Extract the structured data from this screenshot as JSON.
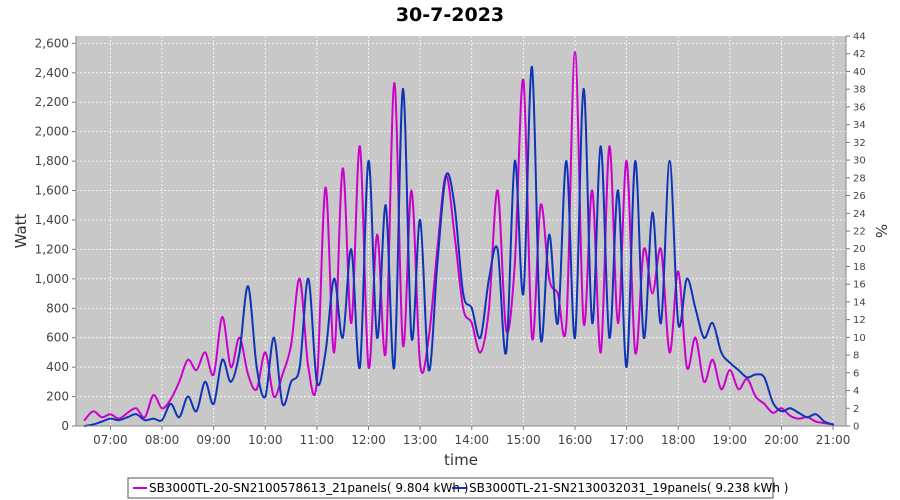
{
  "chart_data": {
    "type": "line",
    "title": "30-7-2023",
    "xlabel": "time",
    "ylabel": "Watt",
    "y2label": "%",
    "xlim": [
      "06:20",
      "21:15"
    ],
    "ylim": [
      0,
      2650
    ],
    "y2lim": [
      0,
      44
    ],
    "grid": true,
    "legend_position": "bottom",
    "x_ticks": [
      "07:00",
      "08:00",
      "09:00",
      "10:00",
      "11:00",
      "12:00",
      "13:00",
      "14:00",
      "15:00",
      "16:00",
      "17:00",
      "18:00",
      "19:00",
      "20:00",
      "21:00"
    ],
    "y_ticks": [
      "0",
      "200",
      "400",
      "600",
      "800",
      "1,000",
      "1,200",
      "1,400",
      "1,600",
      "1,800",
      "2,000",
      "2,200",
      "2,400",
      "2,600"
    ],
    "y2_ticks": [
      "0",
      "2",
      "4",
      "6",
      "8",
      "10",
      "12",
      "14",
      "16",
      "18",
      "20",
      "22",
      "24",
      "26",
      "28",
      "30",
      "32",
      "34",
      "36",
      "38",
      "40",
      "42",
      "44"
    ],
    "series": [
      {
        "name": "SB3000TL-20-SN2100578613_21panels( 9.804 kWh )",
        "color": "#cc00cc",
        "x": [
          "06:30",
          "06:40",
          "06:50",
          "07:00",
          "07:10",
          "07:20",
          "07:30",
          "07:40",
          "07:50",
          "08:00",
          "08:10",
          "08:20",
          "08:30",
          "08:40",
          "08:50",
          "09:00",
          "09:10",
          "09:20",
          "09:30",
          "09:40",
          "09:50",
          "10:00",
          "10:10",
          "10:20",
          "10:30",
          "10:40",
          "10:50",
          "11:00",
          "11:10",
          "11:20",
          "11:30",
          "11:40",
          "11:50",
          "12:00",
          "12:10",
          "12:20",
          "12:30",
          "12:40",
          "12:50",
          "13:00",
          "13:10",
          "13:20",
          "13:30",
          "13:40",
          "13:50",
          "14:00",
          "14:10",
          "14:20",
          "14:30",
          "14:40",
          "14:50",
          "15:00",
          "15:10",
          "15:20",
          "15:30",
          "15:40",
          "15:50",
          "16:00",
          "16:10",
          "16:20",
          "16:30",
          "16:40",
          "16:50",
          "17:00",
          "17:10",
          "17:20",
          "17:30",
          "17:40",
          "17:50",
          "18:00",
          "18:10",
          "18:20",
          "18:30",
          "18:40",
          "18:50",
          "19:00",
          "19:10",
          "19:20",
          "19:30",
          "19:40",
          "19:50",
          "20:00",
          "20:10",
          "20:20",
          "20:30",
          "20:40",
          "20:50",
          "21:00"
        ],
        "values": [
          40,
          100,
          60,
          80,
          50,
          90,
          120,
          60,
          210,
          120,
          180,
          300,
          450,
          380,
          500,
          350,
          740,
          400,
          600,
          350,
          250,
          500,
          200,
          350,
          550,
          1000,
          400,
          300,
          1620,
          500,
          1750,
          700,
          1900,
          400,
          1300,
          500,
          2330,
          550,
          1600,
          420,
          600,
          1200,
          1700,
          1300,
          800,
          700,
          500,
          800,
          1600,
          650,
          1100,
          2350,
          600,
          1500,
          1000,
          900,
          700,
          2540,
          700,
          1600,
          500,
          1900,
          700,
          1800,
          500,
          1200,
          900,
          1200,
          500,
          1050,
          400,
          600,
          300,
          450,
          250,
          380,
          250,
          320,
          200,
          150,
          90,
          120,
          70,
          50,
          60,
          30,
          20,
          10
        ]
      },
      {
        "name": "SB3000TL-21-SN2130032031_19panels( 9.238 kWh )",
        "color": "#1034b8",
        "x": [
          "06:30",
          "06:40",
          "06:50",
          "07:00",
          "07:10",
          "07:20",
          "07:30",
          "07:40",
          "07:50",
          "08:00",
          "08:10",
          "08:20",
          "08:30",
          "08:40",
          "08:50",
          "09:00",
          "09:10",
          "09:20",
          "09:30",
          "09:40",
          "09:50",
          "10:00",
          "10:10",
          "10:20",
          "10:30",
          "10:40",
          "10:50",
          "11:00",
          "11:10",
          "11:20",
          "11:30",
          "11:40",
          "11:50",
          "12:00",
          "12:10",
          "12:20",
          "12:30",
          "12:40",
          "12:50",
          "13:00",
          "13:10",
          "13:20",
          "13:30",
          "13:40",
          "13:50",
          "14:00",
          "14:10",
          "14:20",
          "14:30",
          "14:40",
          "14:50",
          "15:00",
          "15:10",
          "15:20",
          "15:30",
          "15:40",
          "15:50",
          "16:00",
          "16:10",
          "16:20",
          "16:30",
          "16:40",
          "16:50",
          "17:00",
          "17:10",
          "17:20",
          "17:30",
          "17:40",
          "17:50",
          "18:00",
          "18:10",
          "18:20",
          "18:30",
          "18:40",
          "18:50",
          "19:00",
          "19:10",
          "19:20",
          "19:30",
          "19:40",
          "19:50",
          "20:00",
          "20:10",
          "20:20",
          "20:30",
          "20:40",
          "20:50",
          "21:00"
        ],
        "values": [
          0,
          10,
          30,
          50,
          40,
          60,
          80,
          40,
          50,
          40,
          150,
          60,
          200,
          100,
          300,
          150,
          450,
          300,
          500,
          950,
          400,
          200,
          600,
          150,
          300,
          400,
          1000,
          300,
          500,
          1000,
          600,
          1200,
          400,
          1800,
          600,
          1500,
          400,
          2290,
          600,
          1400,
          380,
          1100,
          1700,
          1500,
          900,
          800,
          600,
          1000,
          1200,
          500,
          1800,
          900,
          2440,
          600,
          1300,
          700,
          1800,
          600,
          2290,
          700,
          1900,
          600,
          1600,
          400,
          1800,
          600,
          1450,
          700,
          1800,
          700,
          1000,
          800,
          600,
          700,
          500,
          430,
          380,
          330,
          350,
          330,
          160,
          100,
          120,
          90,
          60,
          80,
          30,
          10
        ]
      }
    ]
  }
}
